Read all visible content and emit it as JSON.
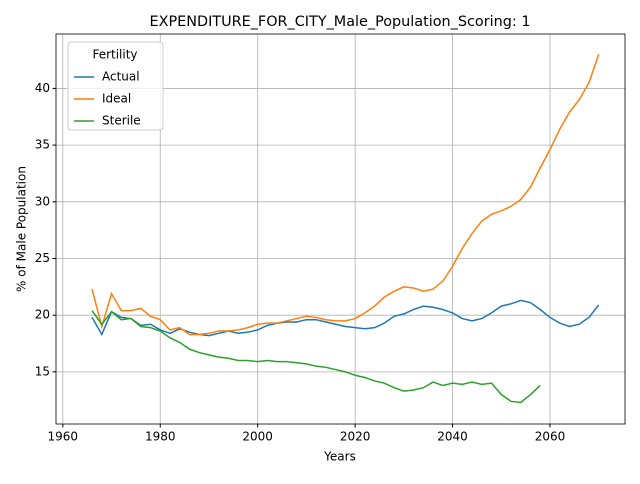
{
  "chart_data": {
    "type": "line",
    "title": "EXPENDITURE_FOR_CITY_Male_Population_Scoring: 1",
    "x_label": "Years",
    "y_label": "% of Male Population",
    "legend_title": "Fertility",
    "legend_position": "upper left",
    "grid": true,
    "xlim": [
      1958.6,
      2075.4
    ],
    "ylim": [
      10.4,
      44.8
    ],
    "xticks": [
      1960,
      1980,
      2000,
      2020,
      2040,
      2060
    ],
    "yticks": [
      15,
      20,
      25,
      30,
      35,
      40
    ],
    "x": [
      1966,
      1968,
      1970,
      1972,
      1974,
      1976,
      1978,
      1980,
      1982,
      1984,
      1986,
      1988,
      1990,
      1992,
      1994,
      1996,
      1998,
      2000,
      2002,
      2004,
      2006,
      2008,
      2010,
      2012,
      2014,
      2016,
      2018,
      2020,
      2022,
      2024,
      2026,
      2028,
      2030,
      2032,
      2034,
      2036,
      2038,
      2040,
      2042,
      2044,
      2046,
      2048,
      2050,
      2052,
      2054,
      2056,
      2058,
      2060,
      2062,
      2064,
      2066,
      2068,
      2070
    ],
    "series": [
      {
        "name": "Actual",
        "color": "#1f77b4",
        "values": [
          19.8,
          18.3,
          20.3,
          19.8,
          19.7,
          19.1,
          19.2,
          18.7,
          18.4,
          18.8,
          18.5,
          18.3,
          18.2,
          18.4,
          18.6,
          18.4,
          18.5,
          18.7,
          19.1,
          19.3,
          19.4,
          19.4,
          19.6,
          19.6,
          19.4,
          19.2,
          19.0,
          18.9,
          18.8,
          18.9,
          19.3,
          19.9,
          20.1,
          20.5,
          20.8,
          20.7,
          20.5,
          20.2,
          19.7,
          19.5,
          19.7,
          20.2,
          20.8,
          21.0,
          21.3,
          21.1,
          20.5,
          19.8,
          19.3,
          19.0,
          19.2,
          19.8,
          20.9
        ]
      },
      {
        "name": "Ideal",
        "color": "#ff7f0e",
        "values": [
          22.3,
          19.0,
          21.9,
          20.4,
          20.4,
          20.6,
          19.9,
          19.6,
          18.7,
          18.9,
          18.3,
          18.3,
          18.4,
          18.6,
          18.6,
          18.7,
          18.9,
          19.2,
          19.3,
          19.3,
          19.5,
          19.7,
          19.9,
          19.8,
          19.6,
          19.5,
          19.5,
          19.7,
          20.2,
          20.8,
          21.6,
          22.1,
          22.5,
          22.4,
          22.1,
          22.3,
          23.0,
          24.3,
          25.9,
          27.2,
          28.3,
          28.9,
          29.2,
          29.6,
          30.2,
          31.3,
          33.0,
          34.6,
          36.4,
          37.9,
          39.0,
          40.5,
          43.0
        ]
      },
      {
        "name": "Sterile",
        "color": "#2ca02c",
        "values": [
          20.4,
          19.2,
          20.3,
          19.6,
          19.7,
          19.0,
          18.9,
          18.6,
          18.0,
          17.6,
          17.0,
          16.7,
          16.5,
          16.3,
          16.2,
          16.0,
          16.0,
          15.9,
          16.0,
          15.9,
          15.9,
          15.8,
          15.7,
          15.5,
          15.4,
          15.2,
          15.0,
          14.7,
          14.5,
          14.2,
          14.0,
          13.6,
          13.3,
          13.4,
          13.6,
          14.1,
          13.8,
          14.0,
          13.9,
          14.1,
          13.9,
          14.0,
          13.0,
          12.4,
          12.3,
          13.0,
          13.8,
          null,
          null,
          null,
          null,
          null,
          null
        ]
      }
    ]
  }
}
